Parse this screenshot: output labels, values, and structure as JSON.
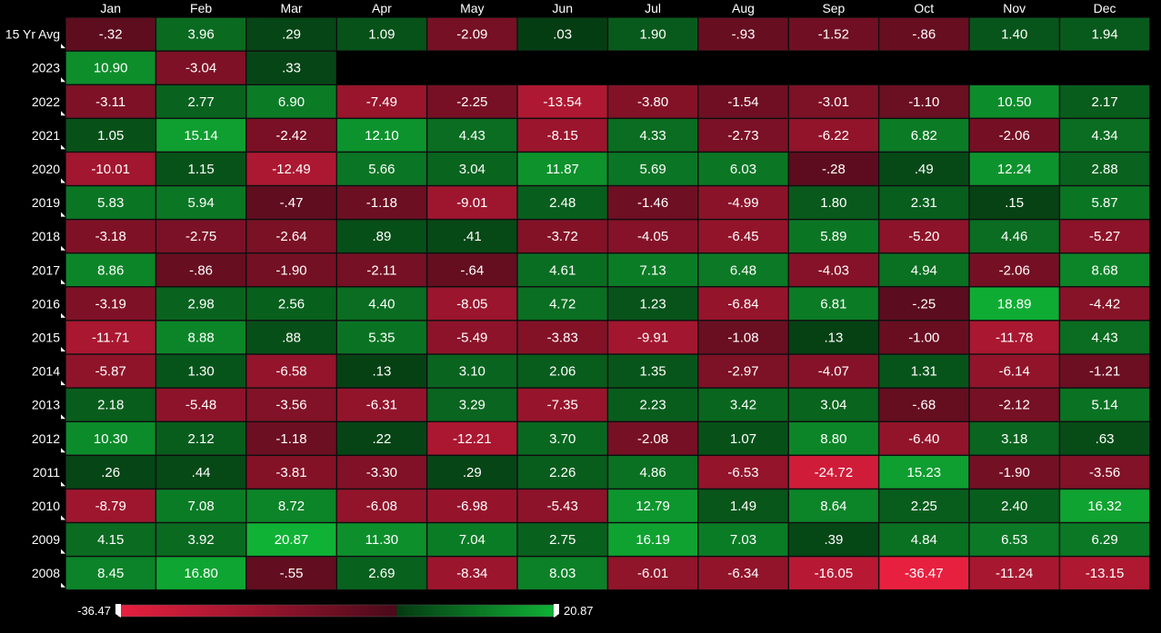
{
  "chart_data": {
    "type": "heatmap",
    "columns": [
      "Jan",
      "Feb",
      "Mar",
      "Apr",
      "May",
      "Jun",
      "Jul",
      "Aug",
      "Sep",
      "Oct",
      "Nov",
      "Dec"
    ],
    "rows": [
      {
        "label": "15 Yr Avg",
        "values": [
          "-.32",
          "3.96",
          ".29",
          "1.09",
          "-2.09",
          ".03",
          "1.90",
          "-.93",
          "-1.52",
          "-.86",
          "1.40",
          "1.94"
        ]
      },
      {
        "label": "2023",
        "values": [
          "10.90",
          "-3.04",
          ".33",
          null,
          null,
          null,
          null,
          null,
          null,
          null,
          null,
          null
        ]
      },
      {
        "label": "2022",
        "values": [
          "-3.11",
          "2.77",
          "6.90",
          "-7.49",
          "-2.25",
          "-13.54",
          "-3.80",
          "-1.54",
          "-3.01",
          "-1.10",
          "10.50",
          "2.17"
        ]
      },
      {
        "label": "2021",
        "values": [
          "1.05",
          "15.14",
          "-2.42",
          "12.10",
          "4.43",
          "-8.15",
          "4.33",
          "-2.73",
          "-6.22",
          "6.82",
          "-2.06",
          "4.34"
        ]
      },
      {
        "label": "2020",
        "values": [
          "-10.01",
          "1.15",
          "-12.49",
          "5.66",
          "3.04",
          "11.87",
          "5.69",
          "6.03",
          "-.28",
          ".49",
          "12.24",
          "2.88"
        ]
      },
      {
        "label": "2019",
        "values": [
          "5.83",
          "5.94",
          "-.47",
          "-1.18",
          "-9.01",
          "2.48",
          "-1.46",
          "-4.99",
          "1.80",
          "2.31",
          ".15",
          "5.87"
        ]
      },
      {
        "label": "2018",
        "values": [
          "-3.18",
          "-2.75",
          "-2.64",
          ".89",
          ".41",
          "-3.72",
          "-4.05",
          "-6.45",
          "5.89",
          "-5.20",
          "4.46",
          "-5.27"
        ]
      },
      {
        "label": "2017",
        "values": [
          "8.86",
          "-.86",
          "-1.90",
          "-2.11",
          "-.64",
          "4.61",
          "7.13",
          "6.48",
          "-4.03",
          "4.94",
          "-2.06",
          "8.68"
        ]
      },
      {
        "label": "2016",
        "values": [
          "-3.19",
          "2.98",
          "2.56",
          "4.40",
          "-8.05",
          "4.72",
          "1.23",
          "-6.84",
          "6.81",
          "-.25",
          "18.89",
          "-4.42"
        ]
      },
      {
        "label": "2015",
        "values": [
          "-11.71",
          "8.88",
          ".88",
          "5.35",
          "-5.49",
          "-3.83",
          "-9.91",
          "-1.08",
          ".13",
          "-1.00",
          "-11.78",
          "4.43"
        ]
      },
      {
        "label": "2014",
        "values": [
          "-5.87",
          "1.30",
          "-6.58",
          ".13",
          "3.10",
          "2.06",
          "1.35",
          "-2.97",
          "-4.07",
          "1.31",
          "-6.14",
          "-1.21"
        ]
      },
      {
        "label": "2013",
        "values": [
          "2.18",
          "-5.48",
          "-3.56",
          "-6.31",
          "3.29",
          "-7.35",
          "2.23",
          "3.42",
          "3.04",
          "-.68",
          "-2.12",
          "5.14"
        ]
      },
      {
        "label": "2012",
        "values": [
          "10.30",
          "2.12",
          "-1.18",
          ".22",
          "-12.21",
          "3.70",
          "-2.08",
          "1.07",
          "8.80",
          "-6.40",
          "3.18",
          ".63"
        ]
      },
      {
        "label": "2011",
        "values": [
          ".26",
          ".44",
          "-3.81",
          "-3.30",
          ".29",
          "2.26",
          "4.86",
          "-6.53",
          "-24.72",
          "15.23",
          "-1.90",
          "-3.56"
        ]
      },
      {
        "label": "2010",
        "values": [
          "-8.79",
          "7.08",
          "8.72",
          "-6.08",
          "-6.98",
          "-5.43",
          "12.79",
          "1.49",
          "8.64",
          "2.25",
          "2.40",
          "16.32"
        ]
      },
      {
        "label": "2009",
        "values": [
          "4.15",
          "3.92",
          "20.87",
          "11.30",
          "7.04",
          "2.75",
          "16.19",
          "7.03",
          ".39",
          "4.84",
          "6.53",
          "6.29"
        ]
      },
      {
        "label": "2008",
        "values": [
          "8.45",
          "16.80",
          "-.55",
          "2.69",
          "-8.34",
          "8.03",
          "-6.01",
          "-6.34",
          "-16.05",
          "-36.47",
          "-11.24",
          "-13.15"
        ]
      }
    ],
    "color_scale": {
      "min": -36.47,
      "max": 20.87,
      "min_label": "-36.47",
      "max_label": "20.87",
      "negative_strong": "#e8203f",
      "negative_weak": "#4a0a1a",
      "positive_weak": "#053a12",
      "positive_strong": "#10b236"
    },
    "background": "#000000"
  }
}
